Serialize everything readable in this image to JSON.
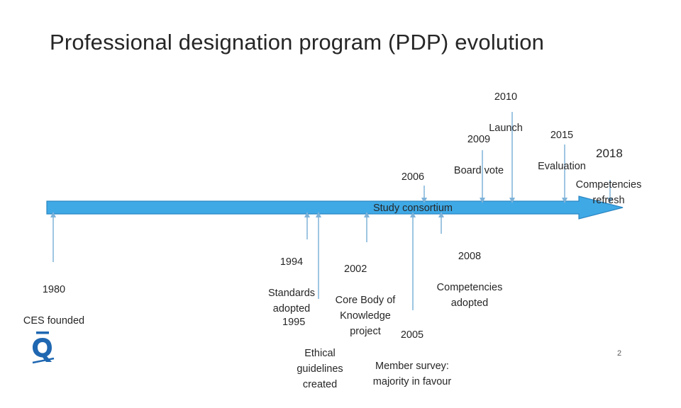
{
  "slide": {
    "title": "Professional designation program (PDP) evolution",
    "page_number": "2",
    "logo_icon": "ces-logo-icon"
  },
  "colors": {
    "arrow_fill": "#3FA9E6",
    "arrow_stroke": "#2A86C2",
    "connector": "#7FB3D9",
    "logo": "#1F67B1"
  },
  "timeline": {
    "events_above": [
      {
        "id": "2010",
        "year": "2010",
        "text": "Launch"
      },
      {
        "id": "2009",
        "year": "2009",
        "text": "Board vote"
      },
      {
        "id": "2006",
        "year": "2006",
        "text": "Study consortium"
      },
      {
        "id": "2015",
        "year": "2015",
        "text": "Evaluation"
      },
      {
        "id": "2018",
        "year": "2018",
        "text": "Competencies\nrefresh"
      }
    ],
    "events_below": [
      {
        "id": "1980",
        "year": "1980",
        "text": "CES founded"
      },
      {
        "id": "1994",
        "year": "1994",
        "text": "Standards\nadopted"
      },
      {
        "id": "2002",
        "year": "2002",
        "text": "Core Body of\nKnowledge\nproject"
      },
      {
        "id": "1995",
        "year": "1995",
        "text": "Ethical\nguidelines\ncreated"
      },
      {
        "id": "2008",
        "year": "2008",
        "text": "Competencies\nadopted"
      },
      {
        "id": "2005",
        "year": "2005",
        "text": "Member survey:\nmajority in favour"
      }
    ]
  }
}
